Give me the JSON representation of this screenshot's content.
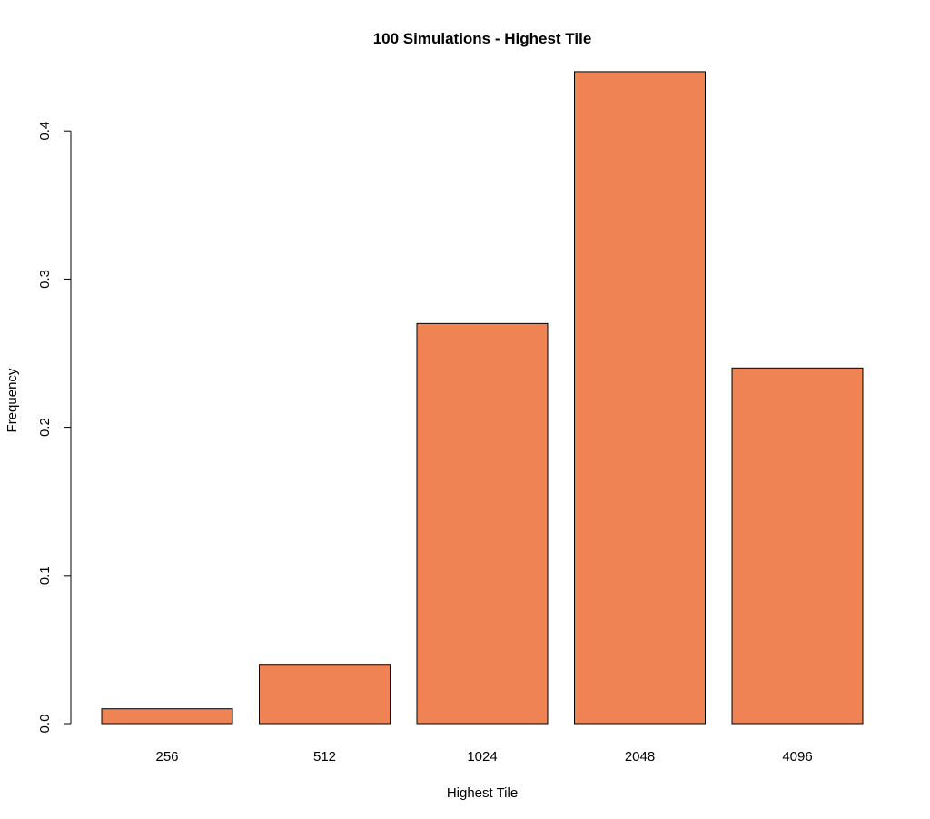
{
  "chart_data": {
    "type": "bar",
    "title": "100 Simulations - Highest Tile",
    "xlabel": "Highest Tile",
    "ylabel": "Frequency",
    "categories": [
      "256",
      "512",
      "1024",
      "2048",
      "4096"
    ],
    "values": [
      0.01,
      0.04,
      0.27,
      0.44,
      0.24
    ],
    "ylim": [
      0,
      0.44
    ],
    "yticks": [
      0.0,
      0.1,
      0.2,
      0.3,
      0.4
    ],
    "ytick_labels": [
      "0.0",
      "0.1",
      "0.2",
      "0.3",
      "0.4"
    ],
    "bar_color": "#EF8354",
    "grid": false,
    "legend": "none"
  }
}
